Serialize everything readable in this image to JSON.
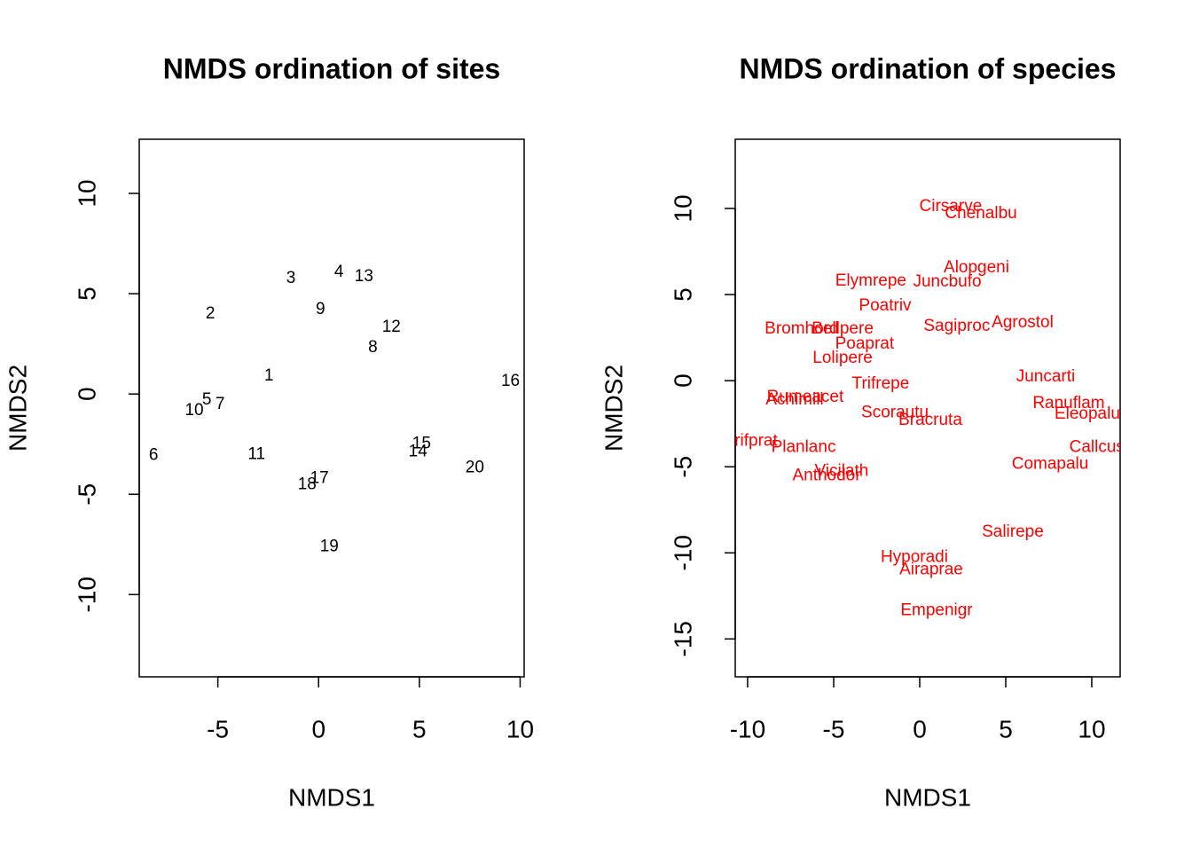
{
  "chart_data": [
    {
      "type": "scatter",
      "title": "NMDS ordination of sites",
      "x_label": "NMDS1",
      "y_label": "NMDS2",
      "xlim": [
        -8.9,
        10.2
      ],
      "ylim": [
        -14.1,
        12.7
      ],
      "xticks": [
        -5,
        0,
        5,
        10
      ],
      "yticks": [
        -10,
        -5,
        0,
        5,
        10
      ],
      "series": [
        {
          "color": "#000000",
          "labels": [
            "1",
            "2",
            "3",
            "4",
            "5",
            "6",
            "7",
            "8",
            "9",
            "10",
            "11",
            "12",
            "13",
            "14",
            "15",
            "16",
            "17",
            "18",
            "19",
            "20"
          ],
          "x": [
            -2.47,
            -5.37,
            -1.37,
            1.01,
            -5.55,
            -8.19,
            -4.89,
            2.69,
            0.09,
            -6.17,
            -3.08,
            3.61,
            2.25,
            4.93,
            5.11,
            9.52,
            0.04,
            -0.57,
            0.53,
            7.75
          ],
          "values": [
            0.89,
            3.99,
            5.76,
            6.07,
            -0.31,
            -3.06,
            -0.53,
            2.31,
            4.21,
            -0.84,
            -3.02,
            3.33,
            5.85,
            -2.88,
            -2.48,
            0.62,
            -4.21,
            -4.52,
            -7.63,
            -3.68
          ]
        }
      ]
    },
    {
      "type": "scatter",
      "title": "NMDS ordination of species",
      "x_label": "NMDS1",
      "y_label": "NMDS2",
      "xlim": [
        -10.72,
        11.65
      ],
      "ylim": [
        -17.2,
        14.02
      ],
      "xticks": [
        -10,
        -5,
        0,
        5,
        10
      ],
      "yticks": [
        -15,
        -10,
        -5,
        0,
        5,
        10
      ],
      "series": [
        {
          "color": "#ff0000",
          "labels": [
            "Cirsarve",
            "Chenalbu",
            "Alopgeni",
            "Elymrepe",
            "Juncbufo",
            "Poatriv",
            "Sagiproc",
            "Agrostol",
            "Bromhord",
            "Bellpere",
            "Poaprat",
            "Lolipere",
            "Trifrepe",
            "Juncarti",
            "Rumeacet",
            "Achimill",
            "Ranuflam",
            "Scorautu",
            "Eleopalu",
            "Bracruta",
            "Trifprat",
            "Planlanc",
            "Callcusp",
            "Comapalu",
            "Vicilath",
            "Anthodor",
            "Salirepe",
            "Hyporadi",
            "Airaprae",
            "Empenigr"
          ],
          "x": [
            1.8,
            3.56,
            3.3,
            -2.84,
            1.6,
            -2.01,
            2.16,
            5.98,
            -6.86,
            -4.48,
            -3.2,
            -4.48,
            -2.27,
            7.32,
            -6.65,
            -7.27,
            8.66,
            -1.44,
            9.74,
            0.62,
            -9.79,
            -6.75,
            10.57,
            7.58,
            -4.54,
            -5.41,
            5.41,
            -0.31,
            0.67,
            0.98
          ],
          "values": [
            10.1,
            9.69,
            6.55,
            5.77,
            5.72,
            4.33,
            3.14,
            3.35,
            2.99,
            2.99,
            2.11,
            1.29,
            -0.21,
            0.21,
            -0.98,
            -1.13,
            -1.34,
            -1.86,
            -1.96,
            -2.32,
            -3.51,
            -3.87,
            -3.87,
            -4.85,
            -5.26,
            -5.52,
            -8.81,
            -10.26,
            -10.98,
            -13.35
          ]
        }
      ]
    }
  ]
}
